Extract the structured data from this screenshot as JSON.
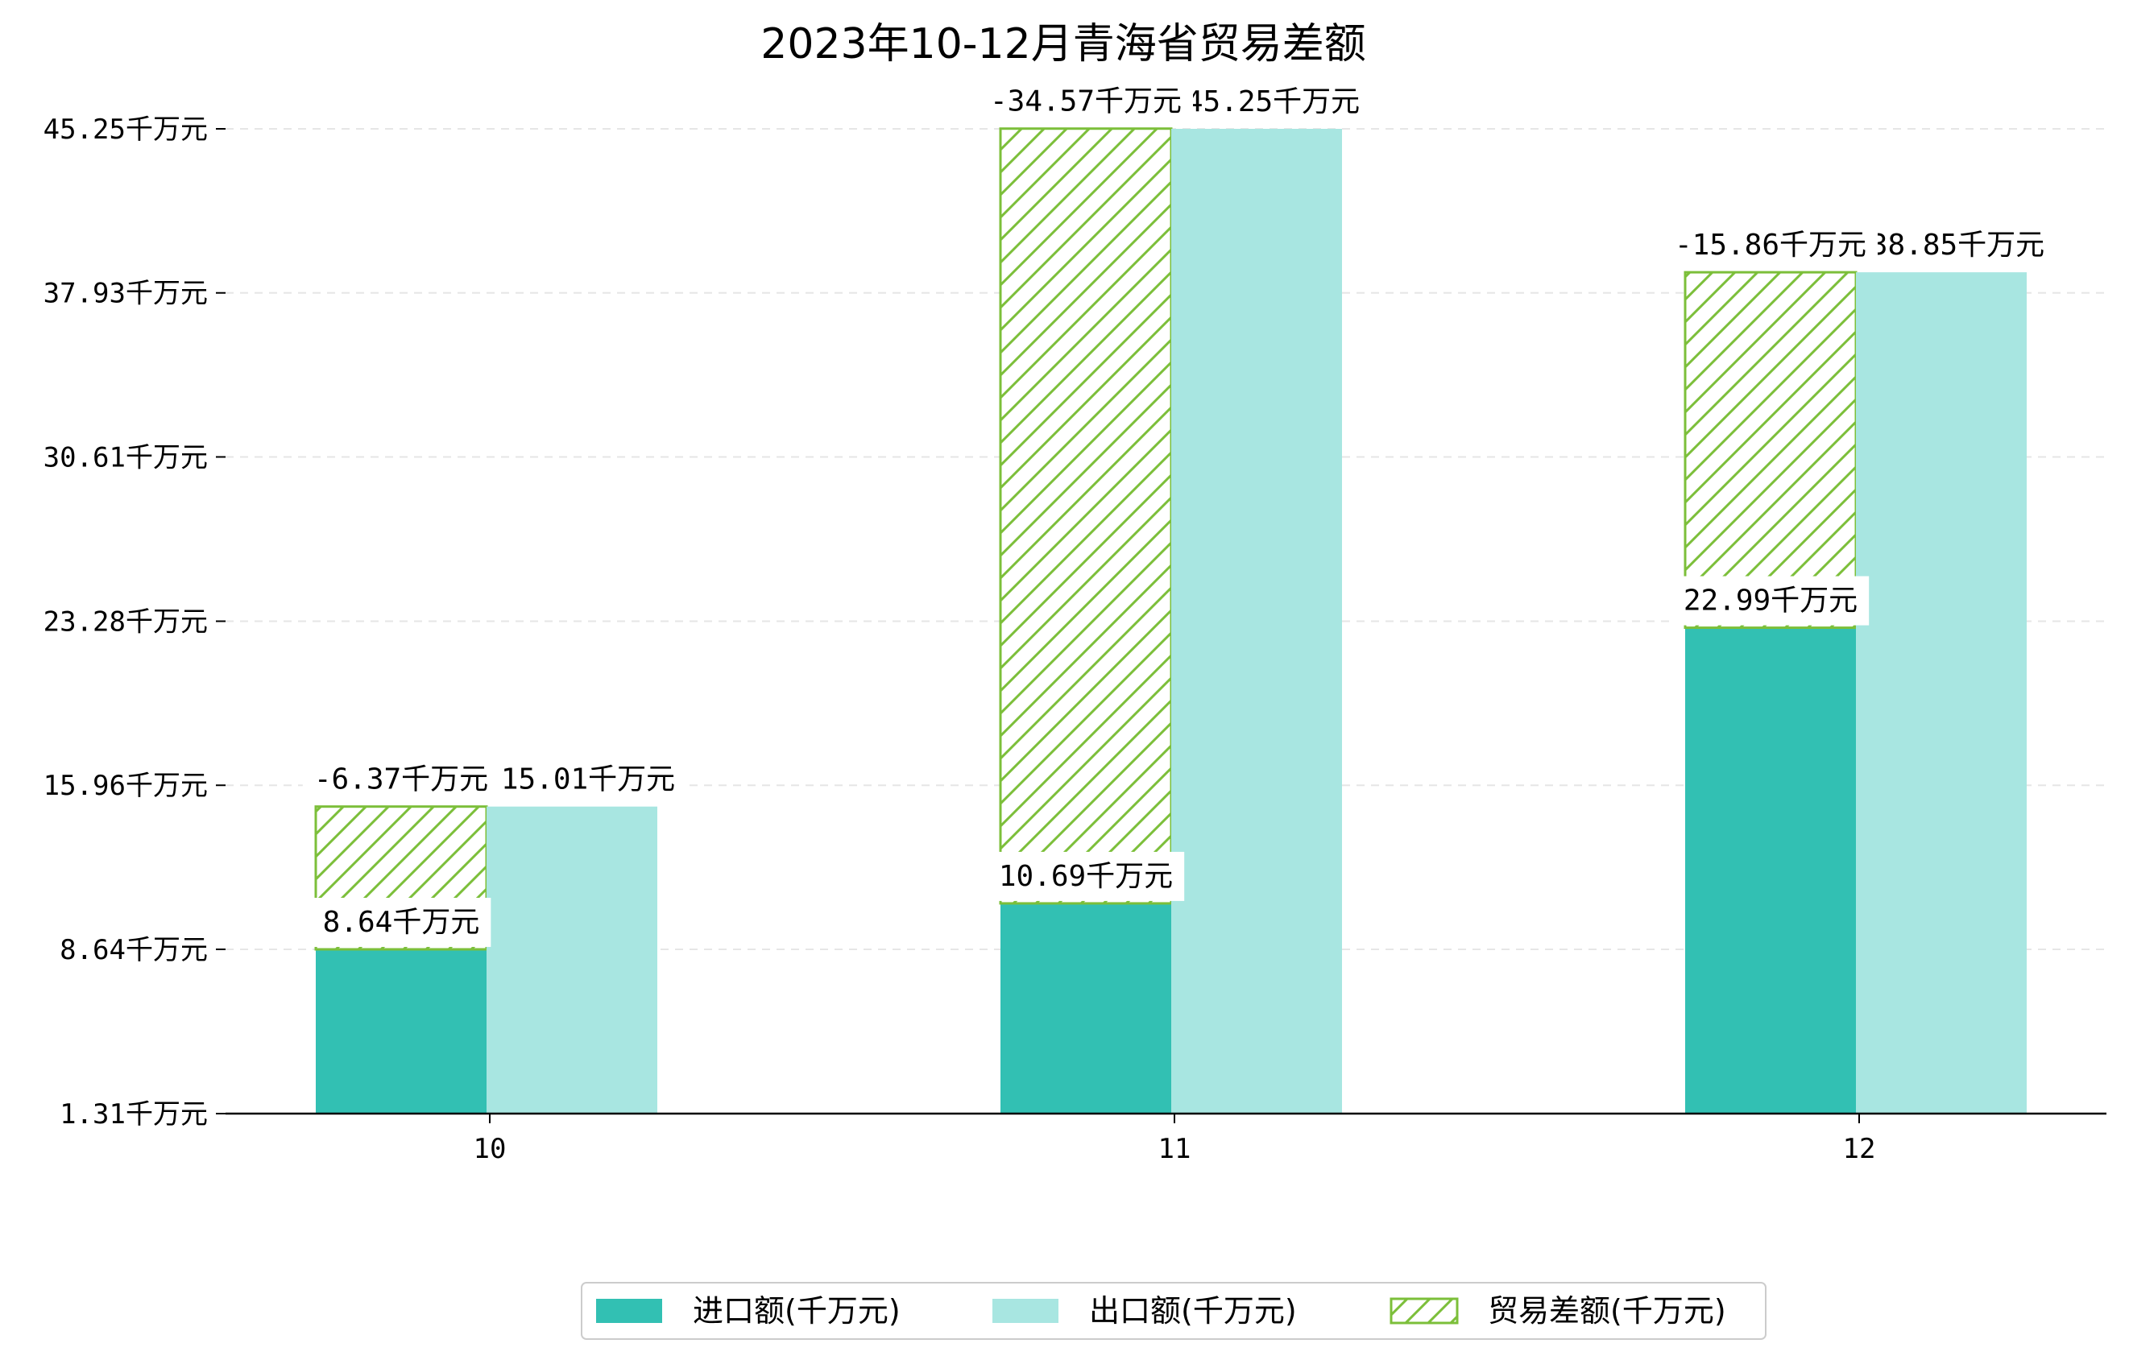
{
  "chart_data": {
    "type": "bar",
    "title": "2023年10-12月青海省贸易差额",
    "categories": [
      "10",
      "11",
      "12"
    ],
    "unit": "千万元",
    "ylim": [
      1.31,
      45.25
    ],
    "yticks": [
      "1.31千万元",
      "8.64千万元",
      "15.96千万元",
      "23.28千万元",
      "30.61千万元",
      "37.93千万元",
      "45.25千万元"
    ],
    "ytick_values": [
      1.31,
      8.64,
      15.96,
      23.28,
      30.61,
      37.93,
      45.25
    ],
    "grid": true,
    "legend_position": "bottom-center",
    "series": [
      {
        "name": "进口额(千万元)",
        "key": "import",
        "values": [
          8.64,
          10.69,
          22.99
        ],
        "labels": [
          "8.64千万元",
          "10.69千万元",
          "22.99千万元"
        ],
        "color": "#32c0b3"
      },
      {
        "name": "出口额(千万元)",
        "key": "export",
        "values": [
          15.01,
          45.25,
          38.85
        ],
        "labels": [
          "15.01千万元",
          "45.25千万元",
          "38.85千万元"
        ],
        "color": "#a8e6e1"
      },
      {
        "name": "贸易差额(千万元)",
        "key": "balance",
        "values": [
          -6.37,
          -34.57,
          -15.86
        ],
        "labels": [
          "-6.37千万元",
          "-34.57千万元",
          "-15.86千万元"
        ],
        "color": "#7cbf3a",
        "hatch": "diagonal"
      }
    ]
  }
}
